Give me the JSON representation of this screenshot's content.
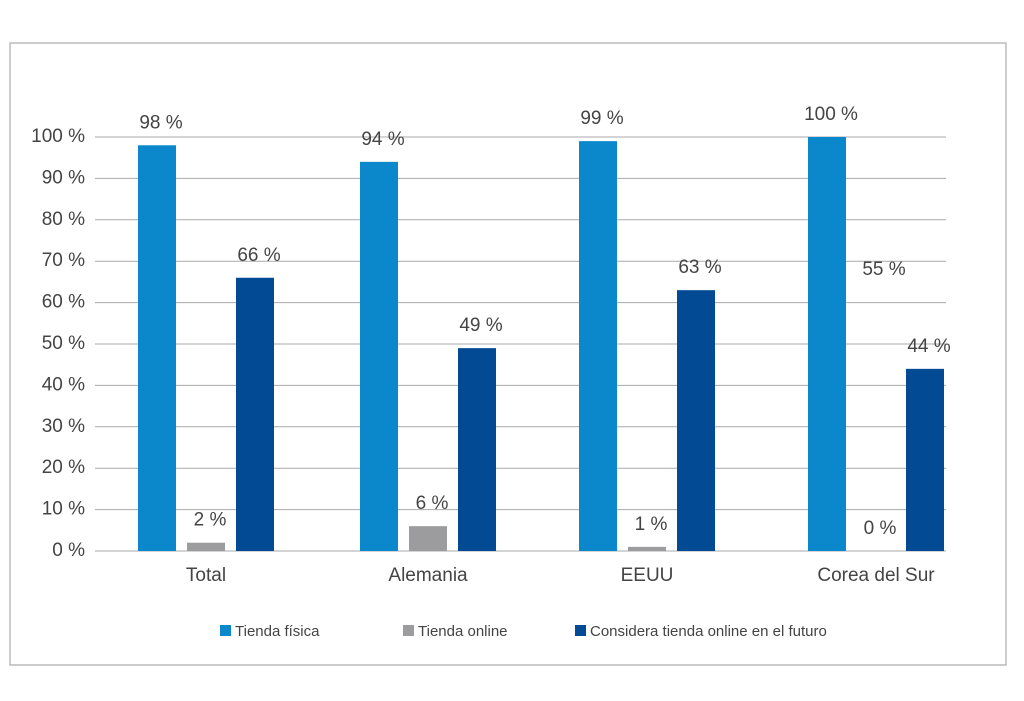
{
  "chart_data": {
    "type": "bar",
    "categories": [
      "Total",
      "Alemania",
      "EEUU",
      "Corea del Sur"
    ],
    "series": [
      {
        "name": "Tienda física",
        "color": "#0a88cb",
        "values": [
          98,
          94,
          99,
          100
        ],
        "value_labels": [
          "98 %",
          "94 %",
          "99 %",
          "100 %"
        ]
      },
      {
        "name": "Tienda online",
        "color": "#9c9c9e",
        "values": [
          2,
          6,
          1,
          0
        ],
        "value_labels": [
          "2 %",
          "6 %",
          "1 %",
          "0 %"
        ]
      },
      {
        "name": "Considera tienda online en el futuro",
        "color": "#024a94",
        "values": [
          66,
          49,
          63,
          44
        ],
        "value_labels": [
          "66 %",
          "49 %",
          "63 %",
          "44 %"
        ]
      }
    ],
    "annotations": [
      "55 %"
    ],
    "ylim": [
      0,
      100
    ],
    "yticks": [
      {
        "value": 0,
        "label": "0 %"
      },
      {
        "value": 10,
        "label": "10 %"
      },
      {
        "value": 20,
        "label": "20 %"
      },
      {
        "value": 30,
        "label": "30 %"
      },
      {
        "value": 40,
        "label": "40 %"
      },
      {
        "value": 50,
        "label": "50 %"
      },
      {
        "value": 60,
        "label": "60 %"
      },
      {
        "value": 70,
        "label": "70 %"
      },
      {
        "value": 80,
        "label": "80 %"
      },
      {
        "value": 90,
        "label": "90 %"
      },
      {
        "value": 100,
        "label": "100 %"
      }
    ],
    "grid": true,
    "legend": "bottom"
  }
}
